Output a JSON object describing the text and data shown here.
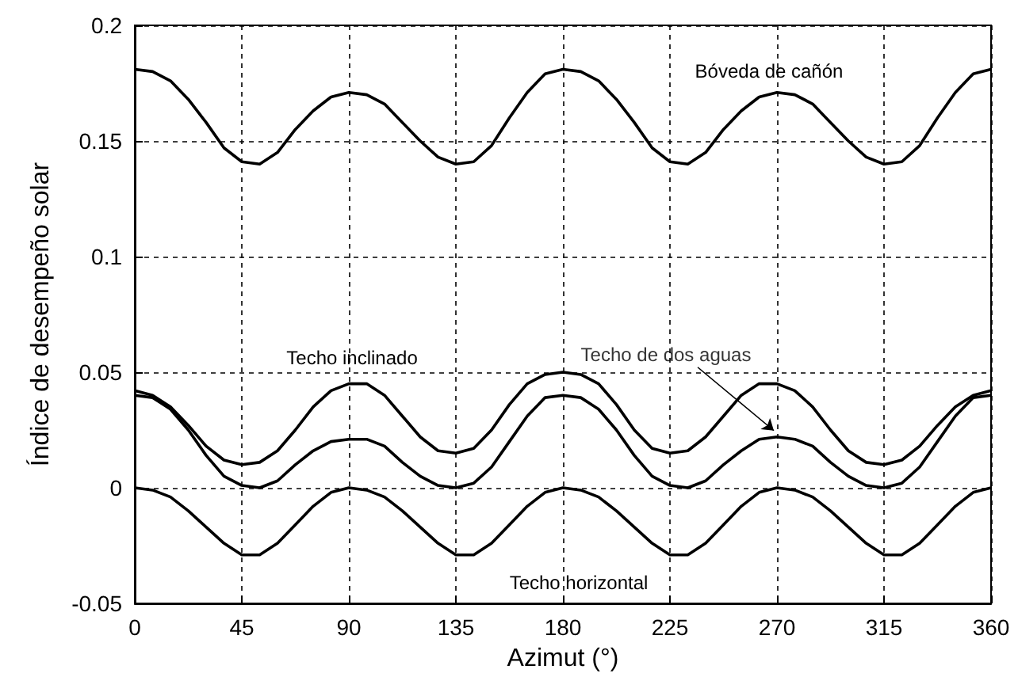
{
  "chart_data": {
    "type": "line",
    "xlabel": "Azimut (°)",
    "ylabel": "Índice de desempeño solar",
    "x": [
      0,
      7.5,
      15,
      22.5,
      30,
      37.5,
      45,
      52.5,
      60,
      67.5,
      75,
      82.5,
      90,
      97.5,
      105,
      112.5,
      120,
      127.5,
      135,
      142.5,
      150,
      157.5,
      165,
      172.5,
      180,
      187.5,
      195,
      202.5,
      210,
      217.5,
      225,
      232.5,
      240,
      247.5,
      255,
      262.5,
      270,
      277.5,
      285,
      292.5,
      300,
      307.5,
      315,
      322.5,
      330,
      337.5,
      345,
      352.5,
      360
    ],
    "series": [
      {
        "color": "#000000",
        "values": [
          0.181,
          0.18,
          0.176,
          0.168,
          0.158,
          0.147,
          0.141,
          0.14,
          0.145,
          0.155,
          0.163,
          0.169,
          0.171,
          0.17,
          0.166,
          0.158,
          0.15,
          0.143,
          0.14,
          0.141,
          0.148,
          0.16,
          0.171,
          0.179,
          0.181,
          0.18,
          0.176,
          0.168,
          0.158,
          0.147,
          0.141,
          0.14,
          0.145,
          0.155,
          0.163,
          0.169,
          0.171,
          0.17,
          0.166,
          0.158,
          0.15,
          0.143,
          0.14,
          0.141,
          0.148,
          0.16,
          0.171,
          0.179,
          0.181
        ]
      },
      {
        "color": "#000000",
        "values": [
          0.042,
          0.04,
          0.035,
          0.027,
          0.018,
          0.012,
          0.01,
          0.011,
          0.016,
          0.025,
          0.035,
          0.042,
          0.045,
          0.045,
          0.04,
          0.031,
          0.022,
          0.016,
          0.015,
          0.017,
          0.025,
          0.036,
          0.045,
          0.049,
          0.05,
          0.049,
          0.045,
          0.036,
          0.025,
          0.017,
          0.015,
          0.016,
          0.022,
          0.031,
          0.04,
          0.045,
          0.045,
          0.042,
          0.035,
          0.025,
          0.016,
          0.011,
          0.01,
          0.012,
          0.018,
          0.027,
          0.035,
          0.04,
          0.042
        ]
      },
      {
        "color": "#000000",
        "values": [
          0.04,
          0.039,
          0.034,
          0.025,
          0.014,
          0.005,
          0.001,
          0,
          0.003,
          0.01,
          0.016,
          0.02,
          0.021,
          0.021,
          0.018,
          0.011,
          0.005,
          0.001,
          0,
          0.002,
          0.009,
          0.02,
          0.031,
          0.039,
          0.04,
          0.039,
          0.034,
          0.025,
          0.014,
          0.005,
          0.001,
          0,
          0.003,
          0.01,
          0.016,
          0.021,
          0.022,
          0.021,
          0.018,
          0.011,
          0.005,
          0.001,
          0,
          0.002,
          0.009,
          0.02,
          0.031,
          0.039,
          0.04
        ]
      },
      {
        "color": "#000000",
        "values": [
          0,
          -0.001,
          -0.004,
          -0.01,
          -0.017,
          -0.024,
          -0.029,
          -0.029,
          -0.024,
          -0.016,
          -0.008,
          -0.002,
          0,
          -0.001,
          -0.004,
          -0.01,
          -0.017,
          -0.024,
          -0.029,
          -0.029,
          -0.024,
          -0.016,
          -0.008,
          -0.002,
          0,
          -0.001,
          -0.004,
          -0.01,
          -0.017,
          -0.024,
          -0.029,
          -0.029,
          -0.024,
          -0.016,
          -0.008,
          -0.002,
          0,
          -0.001,
          -0.004,
          -0.01,
          -0.017,
          -0.024,
          -0.029,
          -0.029,
          -0.024,
          -0.016,
          -0.008,
          -0.002,
          0
        ]
      }
    ],
    "annotations": [
      "Bóveda de cañón",
      "Techo inclinado",
      {
        "text": "Techo de dos aguas",
        "x": 270,
        "y": 0.022
      },
      "Techo horizontal"
    ],
    "xlim": [
      0,
      360
    ],
    "xticks": [
      0,
      45,
      90,
      135,
      180,
      225,
      270,
      315,
      360
    ],
    "ylim": [
      -0.05,
      0.2
    ],
    "yticks": [
      -0.05,
      0,
      0.05,
      0.1,
      0.15,
      0.2
    ],
    "grid": true,
    "marker": "none",
    "line_style": "solid"
  }
}
